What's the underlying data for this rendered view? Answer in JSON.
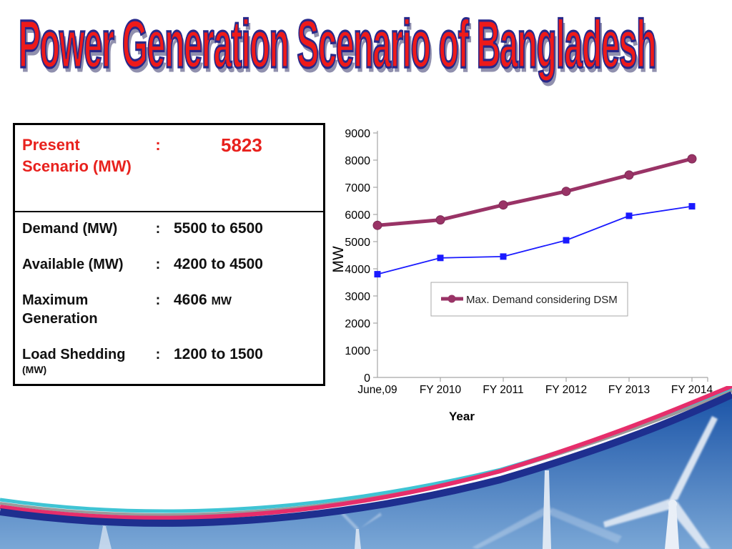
{
  "title": "Power Generation Scenario of Bangladesh",
  "table": {
    "header": {
      "label": "Present Scenario (MW)",
      "colon": ":",
      "value": "5823"
    },
    "rows": [
      {
        "label": "Demand (MW)",
        "colon": ":",
        "value": "5500 to 6500"
      },
      {
        "label": "Available (MW)",
        "colon": ":",
        "value": "4200 to 4500"
      },
      {
        "label": "Maximum Generation",
        "colon": ":",
        "value": "4606",
        "unit": "MW"
      },
      {
        "label": "Load Shedding",
        "note": "(MW)",
        "colon": ":",
        "value": "1200 to 1500"
      }
    ]
  },
  "chart_data": {
    "type": "line",
    "categories": [
      "June,09",
      "FY 2010",
      "FY 2011",
      "FY 2012",
      "FY 2013",
      "FY 2014"
    ],
    "series": [
      {
        "name": "Max. Demand considering DSM",
        "color": "#993366",
        "marker": "circle",
        "values": [
          5600,
          5800,
          6350,
          6850,
          7450,
          8050
        ]
      },
      {
        "name": "",
        "color": "#1a1aff",
        "marker": "square",
        "values": [
          3800,
          4400,
          4450,
          5050,
          5950,
          6300
        ]
      }
    ],
    "title": "",
    "xlabel": "Year",
    "ylabel": "MW",
    "ylim": [
      0,
      9000
    ],
    "ytick_step": 1000,
    "yticks": [
      0,
      1000,
      2000,
      3000,
      4000,
      5000,
      6000,
      7000,
      8000,
      9000
    ],
    "grid": false,
    "legend": {
      "entries": [
        "Max. Demand considering DSM"
      ],
      "position": "inside-bottom"
    }
  },
  "colors": {
    "title_fill": "#ee1a1a",
    "title_outline": "#28288a",
    "table_accent_red": "#e8211d",
    "series_purple": "#993366",
    "series_blue": "#1a1aff",
    "ribbon_navy": "#1e2f8f",
    "ribbon_pink": "#e62e6b",
    "ribbon_cyan": "#3fc4d4",
    "ribbon_gray": "#9a9a9a",
    "sky_top": "#1c55a8",
    "sky_bottom": "#7aa7d6"
  }
}
